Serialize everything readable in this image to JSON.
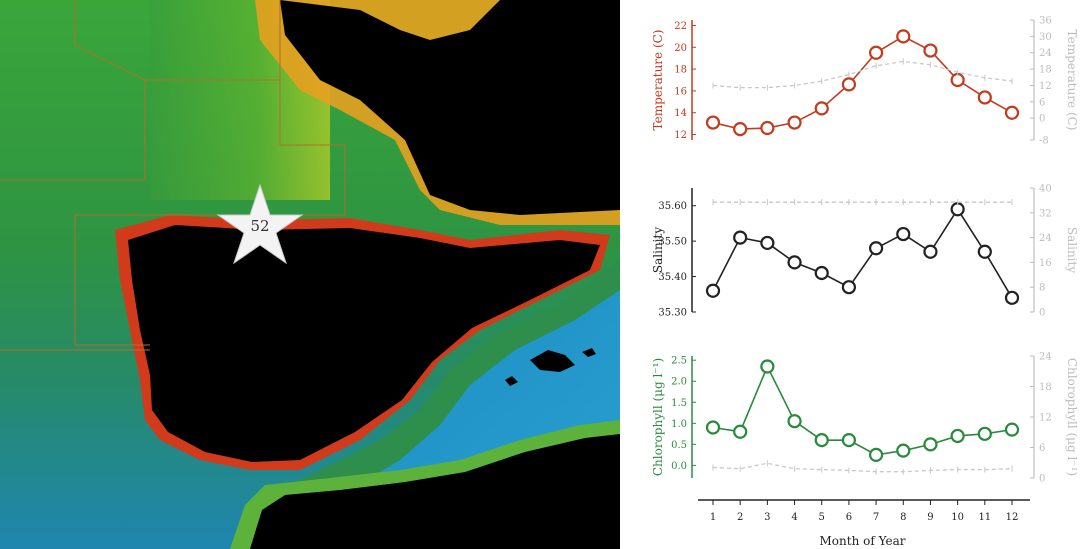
{
  "map": {
    "station_label": "52",
    "colors": {
      "land": "#000000",
      "shelf_green": "#2f9a3a",
      "coast_red": "#d8361c",
      "coast_yellow": "#f2e21a",
      "deep_blue": "#1f8fbf",
      "box_line": "#b0702a"
    }
  },
  "x_axis": {
    "title": "Month of Year",
    "ticks": [
      "1",
      "2",
      "3",
      "4",
      "5",
      "6",
      "7",
      "8",
      "9",
      "10",
      "11",
      "12"
    ]
  },
  "chart_data": [
    {
      "type": "line",
      "ylabel": "Temperature (C)",
      "ylabel_right": "Temperature (C)",
      "color": "#c23b1e",
      "right_color": "#bdbdbd",
      "ylim": [
        11.5,
        22.5
      ],
      "yticks": [
        "12",
        "14",
        "16",
        "18",
        "20",
        "22"
      ],
      "ylim_right": [
        -8,
        36
      ],
      "yticks_right": [
        "-8",
        "0",
        "6",
        "12",
        "18",
        "24",
        "30",
        "36"
      ],
      "x": [
        1,
        2,
        3,
        4,
        5,
        6,
        7,
        8,
        9,
        10,
        11,
        12
      ],
      "series": [
        {
          "values": [
            13.1,
            12.5,
            12.6,
            13.1,
            14.4,
            16.6,
            19.5,
            21.0,
            19.7,
            17.0,
            15.4,
            14.0
          ]
        },
        {
          "values": [
            16.5,
            16.3,
            16.3,
            16.5,
            16.9,
            17.5,
            18.3,
            18.7,
            18.4,
            17.7,
            17.2,
            16.9
          ],
          "style": "dashed"
        }
      ]
    },
    {
      "type": "line",
      "ylabel": "Salinity",
      "ylabel_right": "Salinity",
      "color": "#222222",
      "right_color": "#bdbdbd",
      "ylim": [
        35.3,
        35.65
      ],
      "yticks": [
        "35.30",
        "35.40",
        "35.50",
        "35.60"
      ],
      "ylim_right": [
        0,
        40
      ],
      "yticks_right": [
        "0",
        "8",
        "16",
        "24",
        "32",
        "40"
      ],
      "x": [
        1,
        2,
        3,
        4,
        5,
        6,
        7,
        8,
        9,
        10,
        11,
        12
      ],
      "series": [
        {
          "values": [
            35.36,
            35.51,
            35.495,
            35.44,
            35.41,
            35.37,
            35.48,
            35.52,
            35.47,
            35.59,
            35.47,
            35.34
          ]
        },
        {
          "values": [
            35.61,
            35.61,
            35.61,
            35.61,
            35.61,
            35.61,
            35.61,
            35.61,
            35.61,
            35.61,
            35.61,
            35.61
          ],
          "style": "dashed"
        }
      ]
    },
    {
      "type": "line",
      "ylabel": "Chlorophyll (μg l⁻¹)",
      "ylabel_right": "Chlorophyll (μg l⁻¹)",
      "color": "#2a8a3c",
      "right_color": "#bdbdbd",
      "ylim": [
        -0.3,
        2.6
      ],
      "yticks": [
        "0.0",
        "0.5",
        "1.0",
        "1.5",
        "2.0",
        "2.5"
      ],
      "ylim_right": [
        0,
        24
      ],
      "yticks_right": [
        "0",
        "6",
        "12",
        "18",
        "24"
      ],
      "x": [
        1,
        2,
        3,
        4,
        5,
        6,
        7,
        8,
        9,
        10,
        11,
        12
      ],
      "series": [
        {
          "values": [
            0.9,
            0.8,
            2.35,
            1.05,
            0.6,
            0.6,
            0.25,
            0.35,
            0.5,
            0.7,
            0.75,
            0.85
          ]
        },
        {
          "values": [
            -0.05,
            -0.08,
            0.05,
            -0.08,
            -0.1,
            -0.12,
            -0.15,
            -0.15,
            -0.12,
            -0.1,
            -0.1,
            -0.08
          ],
          "style": "dashed"
        }
      ]
    }
  ]
}
